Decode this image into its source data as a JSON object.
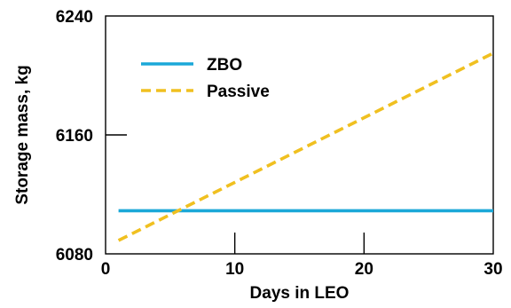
{
  "chart_data": {
    "type": "line",
    "title": "",
    "xlabel": "Days in LEO",
    "ylabel": "Storage mass, kg",
    "xlim": [
      0,
      30
    ],
    "ylim": [
      6080,
      6240
    ],
    "x_ticks": [
      0,
      10,
      20,
      30
    ],
    "x_tick_labels": [
      "0",
      "10",
      "20",
      "30"
    ],
    "y_ticks": [
      6080,
      6160,
      6240
    ],
    "y_tick_labels": [
      "6080",
      "6160",
      "6240"
    ],
    "grid": false,
    "legend_position": "upper-left",
    "series": [
      {
        "name": "ZBO",
        "color": "#1ba8d8",
        "dash": "solid",
        "points": [
          [
            1,
            6109
          ],
          [
            30,
            6109
          ]
        ]
      },
      {
        "name": "Passive",
        "color": "#f0c020",
        "dash": "dashed",
        "points": [
          [
            1,
            6089
          ],
          [
            30,
            6215
          ]
        ]
      }
    ]
  }
}
